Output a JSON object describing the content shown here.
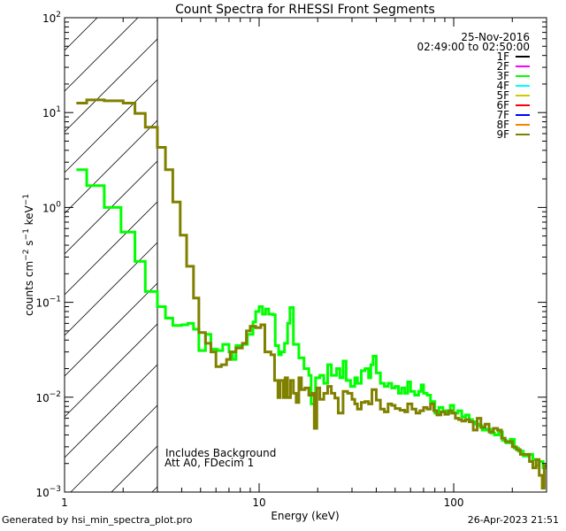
{
  "chart_data": {
    "type": "line",
    "title": "Count Spectra for RHESSI Front Segments",
    "xlabel": "Energy (keV)",
    "ylabel": "counts cm^-2 s^-1 keV^-1",
    "xscale": "log",
    "yscale": "log",
    "xlim": [
      1,
      300
    ],
    "ylim": [
      0.001,
      100
    ],
    "x_ticks": [
      {
        "v": 1,
        "label": "1"
      },
      {
        "v": 10,
        "label": "10"
      },
      {
        "v": 100,
        "label": "100"
      }
    ],
    "y_ticks": [
      {
        "v": 100,
        "base": "10",
        "exp": "2"
      },
      {
        "v": 10,
        "base": "10",
        "exp": "1"
      },
      {
        "v": 1,
        "base": "10",
        "exp": "0"
      },
      {
        "v": 0.1,
        "base": "10",
        "exp": "−1"
      },
      {
        "v": 0.01,
        "base": "10",
        "exp": "−2"
      },
      {
        "v": 0.001,
        "base": "10",
        "exp": "−3"
      }
    ],
    "ylabel_parts": {
      "a": "counts cm",
      "e1": "−2",
      "b": " s",
      "e2": "−1",
      "c": " keV",
      "e3": "−1"
    },
    "shaded_region": {
      "x_from": 1,
      "x_to": 3,
      "style": "diagonal hatch"
    },
    "date": "25-Nov-2016",
    "time_range": "02:49:00 to 02:50:00",
    "annotations": [
      "Includes Background",
      "Att A0, FDecim 1"
    ],
    "legend": {
      "placement": "top-right",
      "entries": [
        {
          "label": "1F",
          "color": "#000000"
        },
        {
          "label": "2F",
          "color": "#ff00ff"
        },
        {
          "label": "3F",
          "color": "#00ff00"
        },
        {
          "label": "4F",
          "color": "#00ffff"
        },
        {
          "label": "5F",
          "color": "#cccc00"
        },
        {
          "label": "6F",
          "color": "#ff0000"
        },
        {
          "label": "7F",
          "color": "#0000ff"
        },
        {
          "label": "8F",
          "color": "#ff8000"
        },
        {
          "label": "9F",
          "color": "#808000"
        }
      ]
    },
    "series": [
      {
        "name": "3F",
        "color": "#00ff00",
        "step_points": [
          [
            1.15,
            2.5
          ],
          [
            1.3,
            1.7
          ],
          [
            1.6,
            1.0
          ],
          [
            1.95,
            0.55
          ],
          [
            2.3,
            0.27
          ],
          [
            2.6,
            0.13
          ],
          [
            3.0,
            0.09
          ],
          [
            3.3,
            0.068
          ],
          [
            3.6,
            0.057
          ],
          [
            4.0,
            0.058
          ],
          [
            4.3,
            0.06
          ],
          [
            4.6,
            0.052
          ],
          [
            4.9,
            0.031
          ],
          [
            5.3,
            0.046
          ],
          [
            5.65,
            0.032
          ],
          [
            6.1,
            0.031
          ],
          [
            6.5,
            0.036
          ],
          [
            7.0,
            0.03
          ],
          [
            7.3,
            0.025
          ],
          [
            7.6,
            0.035
          ],
          [
            8.2,
            0.036
          ],
          [
            8.7,
            0.046
          ],
          [
            9.3,
            0.062
          ],
          [
            9.6,
            0.08
          ],
          [
            10.0,
            0.09
          ],
          [
            10.4,
            0.075
          ],
          [
            10.8,
            0.085
          ],
          [
            11.2,
            0.075
          ],
          [
            11.8,
            0.074
          ],
          [
            12.1,
            0.035
          ],
          [
            12.6,
            0.028
          ],
          [
            13.0,
            0.03
          ],
          [
            13.5,
            0.037
          ],
          [
            14.0,
            0.06
          ],
          [
            14.4,
            0.088
          ],
          [
            15.0,
            0.036
          ],
          [
            16.0,
            0.026
          ],
          [
            17.0,
            0.02
          ],
          [
            18.0,
            0.017
          ],
          [
            18.5,
            0.0085
          ],
          [
            19.5,
            0.016
          ],
          [
            20.5,
            0.017
          ],
          [
            21.5,
            0.014
          ],
          [
            22.5,
            0.022
          ],
          [
            23.5,
            0.017
          ],
          [
            25,
            0.02
          ],
          [
            26,
            0.016
          ],
          [
            27,
            0.024
          ],
          [
            28,
            0.015
          ],
          [
            29.5,
            0.013
          ],
          [
            31,
            0.016
          ],
          [
            32,
            0.014
          ],
          [
            33.5,
            0.019
          ],
          [
            35,
            0.02
          ],
          [
            36.5,
            0.016
          ],
          [
            37.5,
            0.022
          ],
          [
            38.5,
            0.027
          ],
          [
            40,
            0.018
          ],
          [
            42,
            0.014
          ],
          [
            44,
            0.013
          ],
          [
            46,
            0.014
          ],
          [
            48,
            0.0125
          ],
          [
            50,
            0.013
          ],
          [
            52,
            0.011
          ],
          [
            54,
            0.0125
          ],
          [
            56,
            0.011
          ],
          [
            58,
            0.0145
          ],
          [
            60,
            0.0115
          ],
          [
            63,
            0.0105
          ],
          [
            66,
            0.0115
          ],
          [
            68,
            0.0135
          ],
          [
            70,
            0.011
          ],
          [
            73,
            0.0105
          ],
          [
            76,
            0.009
          ],
          [
            80,
            0.0068
          ],
          [
            84,
            0.0078
          ],
          [
            88,
            0.0072
          ],
          [
            92,
            0.0068
          ],
          [
            96,
            0.0082
          ],
          [
            100,
            0.0068
          ],
          [
            105,
            0.0072
          ],
          [
            110,
            0.0062
          ],
          [
            115,
            0.0065
          ],
          [
            120,
            0.0058
          ],
          [
            125,
            0.0055
          ],
          [
            130,
            0.0052
          ],
          [
            135,
            0.005
          ],
          [
            140,
            0.0045
          ],
          [
            148,
            0.0046
          ],
          [
            155,
            0.0042
          ],
          [
            162,
            0.004
          ],
          [
            170,
            0.0043
          ],
          [
            178,
            0.0035
          ],
          [
            186,
            0.0033
          ],
          [
            195,
            0.0036
          ],
          [
            205,
            0.0029
          ],
          [
            215,
            0.0027
          ],
          [
            228,
            0.0024
          ],
          [
            242,
            0.0025
          ],
          [
            255,
            0.0022
          ],
          [
            265,
            0.0019
          ],
          [
            275,
            0.0021
          ],
          [
            288,
            0.0018
          ],
          [
            300,
            0.0018
          ]
        ]
      },
      {
        "name": "9F",
        "color": "#808000",
        "step_points": [
          [
            1.15,
            12.6
          ],
          [
            1.3,
            13.6
          ],
          [
            1.6,
            13.3
          ],
          [
            2.0,
            12.6
          ],
          [
            2.3,
            9.8
          ],
          [
            2.6,
            7.0
          ],
          [
            3.0,
            4.3
          ],
          [
            3.3,
            2.5
          ],
          [
            3.6,
            1.14
          ],
          [
            3.93,
            0.51
          ],
          [
            4.24,
            0.24
          ],
          [
            4.6,
            0.111
          ],
          [
            4.9,
            0.048
          ],
          [
            5.3,
            0.037
          ],
          [
            5.65,
            0.03
          ],
          [
            6.0,
            0.021
          ],
          [
            6.4,
            0.022
          ],
          [
            6.8,
            0.025
          ],
          [
            7.1,
            0.03
          ],
          [
            7.6,
            0.033
          ],
          [
            8.2,
            0.037
          ],
          [
            8.6,
            0.05
          ],
          [
            9.0,
            0.056
          ],
          [
            9.6,
            0.054
          ],
          [
            10.2,
            0.058
          ],
          [
            10.7,
            0.03
          ],
          [
            11.5,
            0.028
          ],
          [
            12.0,
            0.015
          ],
          [
            12.5,
            0.0099
          ],
          [
            12.8,
            0.015
          ],
          [
            13.3,
            0.0099
          ],
          [
            13.6,
            0.016
          ],
          [
            14.0,
            0.0099
          ],
          [
            14.5,
            0.015
          ],
          [
            15.0,
            0.011
          ],
          [
            15.5,
            0.0088
          ],
          [
            16.0,
            0.016
          ],
          [
            16.5,
            0.012
          ],
          [
            17.2,
            0.0125
          ],
          [
            18.0,
            0.0105
          ],
          [
            18.7,
            0.011
          ],
          [
            19.2,
            0.0047
          ],
          [
            19.8,
            0.0125
          ],
          [
            20.5,
            0.0095
          ],
          [
            21.5,
            0.011
          ],
          [
            22.5,
            0.013
          ],
          [
            23.5,
            0.011
          ],
          [
            24.5,
            0.0098
          ],
          [
            25.5,
            0.0068
          ],
          [
            27,
            0.0115
          ],
          [
            28.5,
            0.011
          ],
          [
            30,
            0.0095
          ],
          [
            31,
            0.0085
          ],
          [
            32,
            0.0075
          ],
          [
            33.5,
            0.0088
          ],
          [
            35,
            0.009
          ],
          [
            36.5,
            0.0085
          ],
          [
            38,
            0.012
          ],
          [
            40,
            0.0093
          ],
          [
            42,
            0.0075
          ],
          [
            44,
            0.007
          ],
          [
            46,
            0.0085
          ],
          [
            48,
            0.0082
          ],
          [
            50,
            0.0076
          ],
          [
            53,
            0.0073
          ],
          [
            56,
            0.007
          ],
          [
            58,
            0.0085
          ],
          [
            61,
            0.0075
          ],
          [
            64,
            0.0068
          ],
          [
            67,
            0.0072
          ],
          [
            70,
            0.0078
          ],
          [
            73,
            0.0075
          ],
          [
            76,
            0.0085
          ],
          [
            79,
            0.0072
          ],
          [
            82,
            0.0065
          ],
          [
            86,
            0.007
          ],
          [
            90,
            0.0066
          ],
          [
            94,
            0.0072
          ],
          [
            98,
            0.0068
          ],
          [
            102,
            0.006
          ],
          [
            106,
            0.0058
          ],
          [
            110,
            0.0056
          ],
          [
            115,
            0.0058
          ],
          [
            120,
            0.0055
          ],
          [
            126,
            0.0045
          ],
          [
            132,
            0.006
          ],
          [
            138,
            0.0048
          ],
          [
            145,
            0.0052
          ],
          [
            152,
            0.0043
          ],
          [
            160,
            0.0047
          ],
          [
            168,
            0.0045
          ],
          [
            176,
            0.0037
          ],
          [
            184,
            0.0034
          ],
          [
            192,
            0.0034
          ],
          [
            200,
            0.003
          ],
          [
            210,
            0.0028
          ],
          [
            220,
            0.0025
          ],
          [
            232,
            0.0025
          ],
          [
            245,
            0.0021
          ],
          [
            255,
            0.0018
          ],
          [
            265,
            0.0022
          ],
          [
            275,
            0.0015
          ],
          [
            285,
            0.0011
          ],
          [
            292,
            0.0019
          ],
          [
            300,
            0.0019
          ]
        ]
      }
    ]
  },
  "footer": {
    "generated_by": "Generated by hsi_min_spectra_plot.pro",
    "timestamp": "26-Apr-2023 21:51"
  }
}
